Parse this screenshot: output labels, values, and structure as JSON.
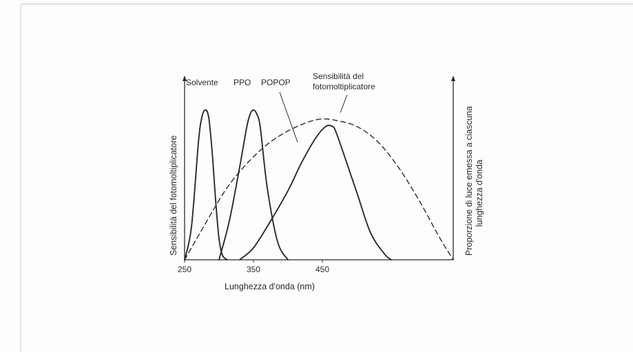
{
  "page": {
    "ink_color": "#2a2a2a",
    "border_color": "#cfcfcf",
    "paper_color": "#fdfdfc"
  },
  "chart_data": {
    "type": "line",
    "title": "",
    "xlabel": "Lunghezza d'onda (nm)",
    "ylabel_left": "Sensibilità del fotomoltiplicatore",
    "ylabel_right_line1": "Proporzione di luce emessa a ciascuna",
    "ylabel_right_line2": "lunghezza d'onda",
    "xlim": [
      250,
      640
    ],
    "ylim": [
      0,
      1
    ],
    "x_ticks": [
      250,
      350,
      450
    ],
    "x_tick_labels": [
      "250",
      "350",
      "450"
    ],
    "grid": false,
    "legend": "none",
    "series": [
      {
        "name": "Solvente",
        "style": "solid",
        "x": [
          250,
          260,
          270,
          275,
          280,
          285,
          290,
          295,
          300,
          305,
          312
        ],
        "y": [
          0.0,
          0.22,
          0.78,
          0.95,
          1.0,
          0.95,
          0.72,
          0.4,
          0.14,
          0.03,
          0.0
        ]
      },
      {
        "name": "PPO",
        "style": "solid",
        "x": [
          300,
          315,
          330,
          340,
          345,
          350,
          355,
          360,
          370,
          385,
          400
        ],
        "y": [
          0.0,
          0.26,
          0.62,
          0.88,
          0.97,
          1.0,
          0.97,
          0.88,
          0.48,
          0.12,
          0.0
        ]
      },
      {
        "name": "POPOP",
        "style": "solid",
        "x": [
          330,
          350,
          375,
          400,
          420,
          440,
          455,
          465,
          470,
          480,
          500,
          520,
          540,
          550
        ],
        "y": [
          0.0,
          0.08,
          0.26,
          0.46,
          0.65,
          0.81,
          0.89,
          0.89,
          0.85,
          0.72,
          0.45,
          0.18,
          0.04,
          0.0
        ]
      },
      {
        "name": "Sensibilità del fotomoltiplicatore",
        "name_line1": "Sensibilità del",
        "name_line2": "fotomoltiplicatore",
        "style": "dashed",
        "x": [
          250,
          280,
          310,
          340,
          370,
          400,
          430,
          450,
          470,
          500,
          530,
          560,
          590,
          620,
          640
        ],
        "y": [
          0.0,
          0.24,
          0.47,
          0.64,
          0.77,
          0.86,
          0.92,
          0.94,
          0.93,
          0.89,
          0.79,
          0.62,
          0.4,
          0.15,
          0.0
        ]
      }
    ]
  }
}
